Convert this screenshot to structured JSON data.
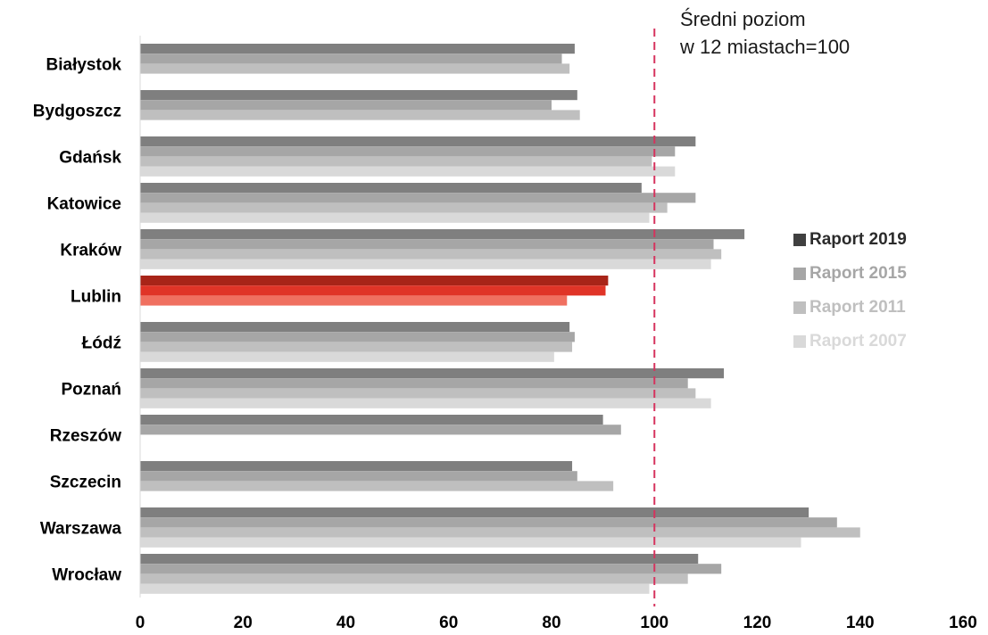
{
  "chart_data": {
    "type": "bar",
    "orientation": "horizontal",
    "categories": [
      "Białystok",
      "Bydgoszcz",
      "Gdańsk",
      "Katowice",
      "Kraków",
      "Lublin",
      "Łódź",
      "Poznań",
      "Rzeszów",
      "Szczecin",
      "Warszawa",
      "Wrocław"
    ],
    "series": [
      {
        "name": "Raport 2019",
        "color": "#7f7f7f",
        "values": [
          84.5,
          85,
          108,
          97.5,
          117.5,
          91,
          83.5,
          113.5,
          90,
          84,
          130,
          108.5
        ]
      },
      {
        "name": "Raport 2015",
        "color": "#a6a6a6",
        "values": [
          82,
          80,
          104,
          108,
          111.5,
          90.5,
          84.5,
          106.5,
          93.5,
          85,
          135.5,
          113
        ]
      },
      {
        "name": "Raport 2011",
        "color": "#bfbfbf",
        "values": [
          83.5,
          85.5,
          99.5,
          102.5,
          113,
          83,
          84,
          108,
          null,
          92,
          140,
          106.5
        ]
      },
      {
        "name": "Raport 2007",
        "color": "#d9d9d9",
        "values": [
          null,
          null,
          104,
          99,
          111,
          null,
          80.5,
          111,
          null,
          null,
          128.5,
          99
        ]
      }
    ],
    "highlight": {
      "category": "Lublin",
      "colors": [
        "#a82418",
        "#e03427",
        "#f07060",
        "#f49a8e"
      ]
    },
    "xlim": [
      0,
      160
    ],
    "xticks": [
      0,
      20,
      40,
      60,
      80,
      100,
      120,
      140,
      160
    ],
    "reference_line": {
      "value": 100,
      "color": "#d6335e",
      "style": "dashed"
    },
    "annotation": [
      "Średni poziom",
      "w 12 miastach=100"
    ],
    "legend_position": "right",
    "grid": false
  }
}
